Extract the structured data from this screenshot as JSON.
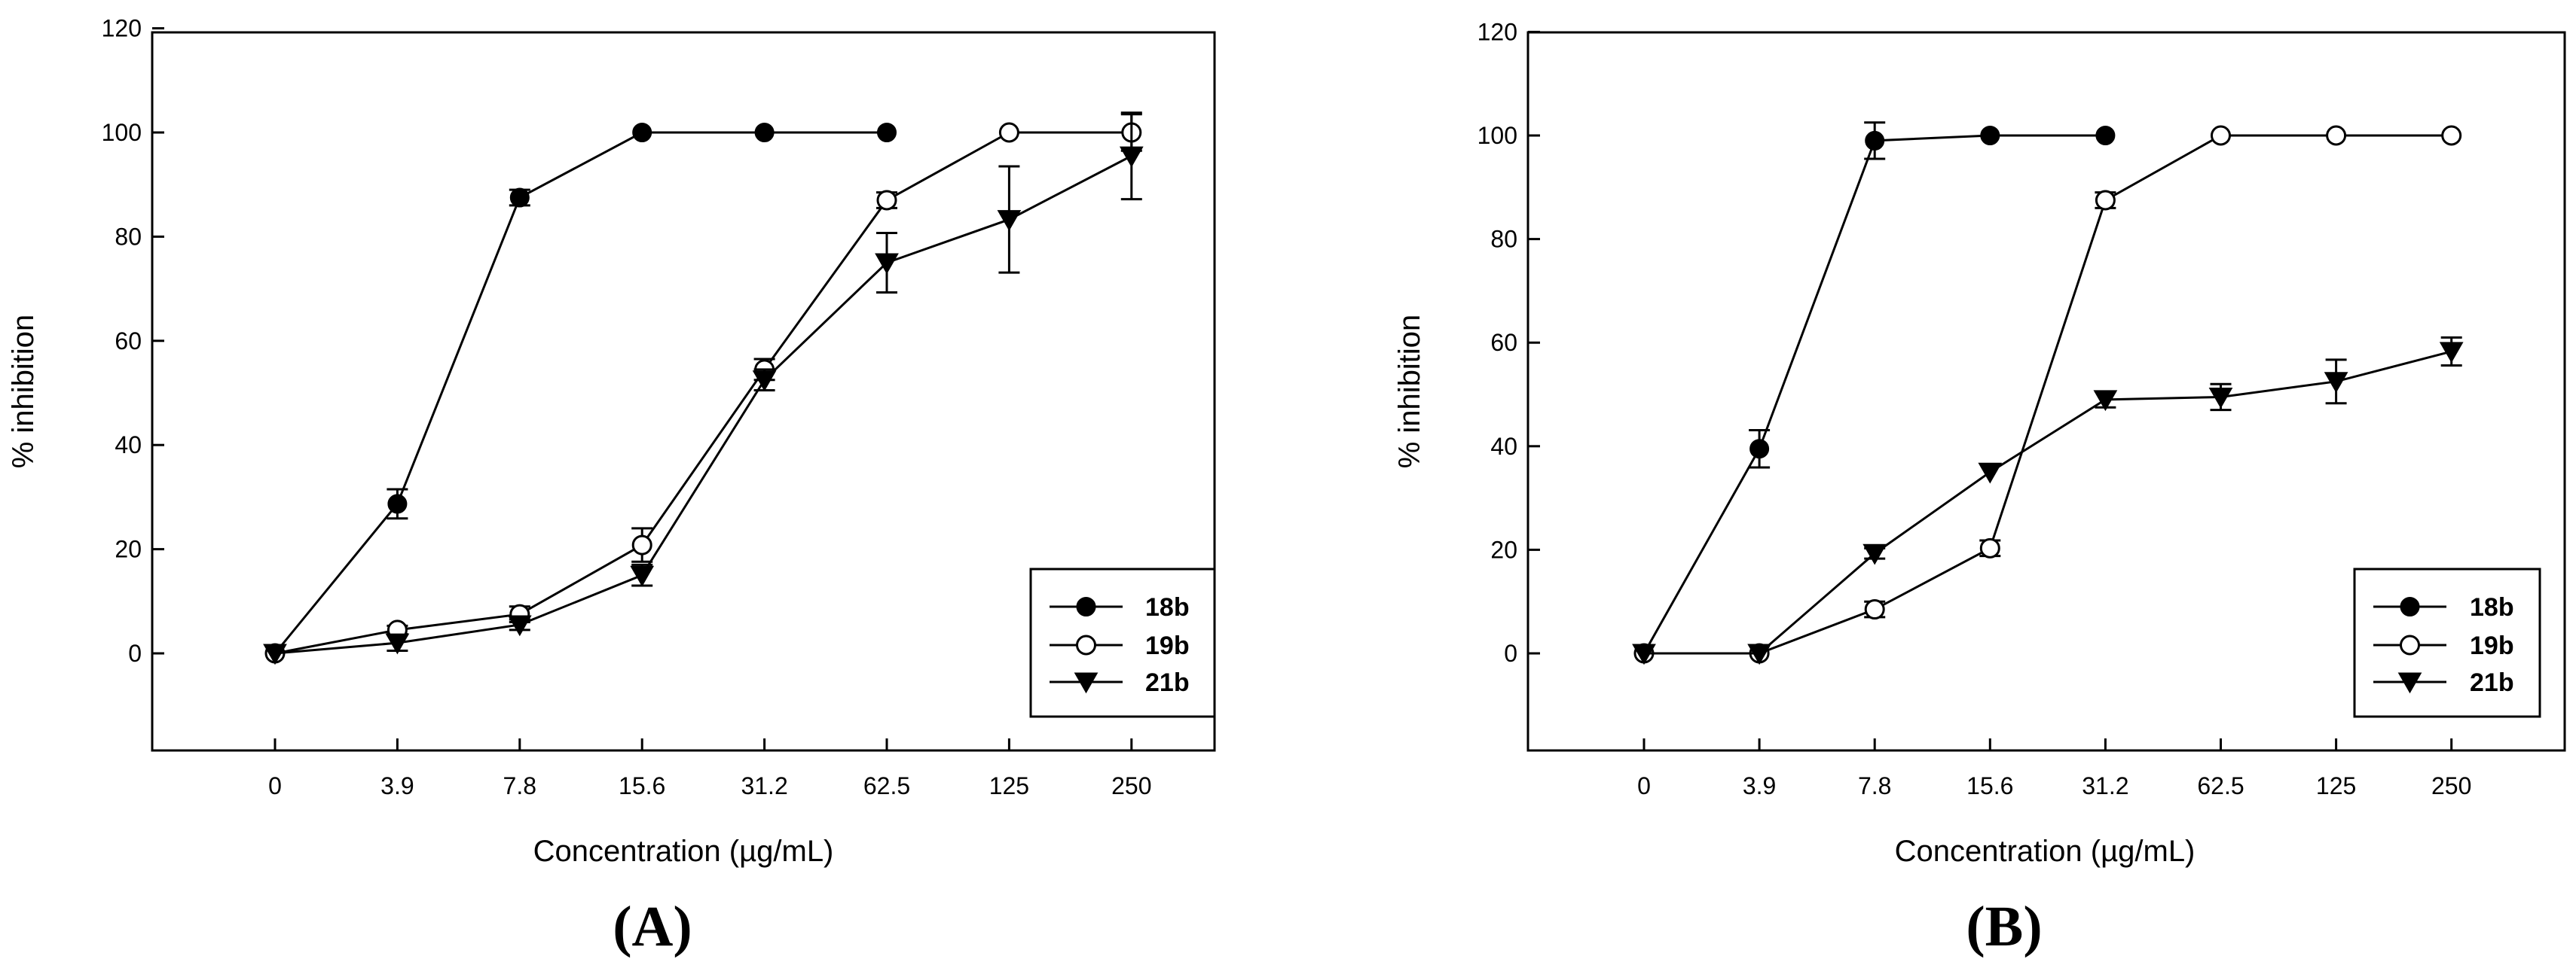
{
  "chart_data": [
    {
      "type": "line",
      "panel_label": "(A)",
      "title": "",
      "xlabel": "Concentration (µg/mL)",
      "ylabel": "% inhibition",
      "categories": [
        "0",
        "3.9",
        "7.8",
        "15.6",
        "31.2",
        "62.5",
        "125",
        "250"
      ],
      "ylim": [
        -18,
        120
      ],
      "yticks": [
        0,
        20,
        40,
        60,
        80,
        100,
        120
      ],
      "grid": false,
      "legend_position": "bottom-right",
      "series": [
        {
          "name": "18b",
          "marker": "filled-circle",
          "values": [
            0,
            28.7,
            87.5,
            100,
            100,
            100,
            null,
            null
          ],
          "errors": [
            0,
            2.8,
            1.5,
            0,
            0,
            0,
            null,
            null
          ]
        },
        {
          "name": "19b",
          "marker": "open-circle",
          "values": [
            0,
            4.5,
            7.5,
            20.8,
            54.5,
            87,
            100,
            100
          ],
          "errors": [
            0,
            0.8,
            1.5,
            3.2,
            2,
            1.5,
            0,
            3.5
          ]
        },
        {
          "name": "21b",
          "marker": "filled-triangle-down",
          "values": [
            0,
            2,
            5.5,
            15,
            52.5,
            75,
            83.3,
            95.5
          ],
          "errors": [
            0,
            1.5,
            1,
            2,
            2,
            5.7,
            10.2,
            8.3
          ]
        }
      ]
    },
    {
      "type": "line",
      "panel_label": "(B)",
      "title": "",
      "xlabel": "Concentration (µg/mL)",
      "ylabel": "% inhibition",
      "categories": [
        "0",
        "3.9",
        "7.8",
        "15.6",
        "31.2",
        "62.5",
        "125",
        "250"
      ],
      "ylim": [
        -18,
        120
      ],
      "yticks": [
        0,
        20,
        40,
        60,
        80,
        100,
        120
      ],
      "grid": false,
      "legend_position": "bottom-right",
      "series": [
        {
          "name": "18b",
          "marker": "filled-circle",
          "values": [
            0,
            39.5,
            99,
            100,
            100,
            null,
            null,
            null
          ],
          "errors": [
            0,
            3.6,
            3.5,
            0,
            0,
            null,
            null,
            null
          ]
        },
        {
          "name": "19b",
          "marker": "open-circle",
          "values": [
            0,
            0,
            8.5,
            20.3,
            87.5,
            100,
            100,
            100
          ],
          "errors": [
            0,
            0,
            1.5,
            1.5,
            1.5,
            0,
            0,
            0
          ]
        },
        {
          "name": "21b",
          "marker": "filled-triangle-down",
          "values": [
            0,
            0,
            19.3,
            35,
            49,
            49.5,
            52.5,
            58.3
          ],
          "errors": [
            0,
            0,
            1,
            0.5,
            1.5,
            2.5,
            4.2,
            2.7
          ]
        }
      ]
    }
  ]
}
